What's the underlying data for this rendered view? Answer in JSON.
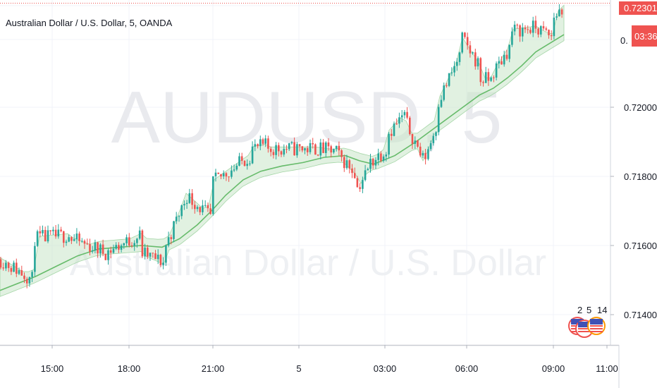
{
  "header": {
    "title": "Australian Dollar / U.S. Dollar, 5, OANDA"
  },
  "watermark": {
    "symbol": "AUDUSD, 5",
    "description": "Australian Dollar / U.S. Dollar"
  },
  "price_axis": {
    "current_price": "0.72301",
    "countdown": "03:36",
    "partial_label": "0."
  },
  "events": [
    {
      "count": "2"
    },
    {
      "count": "5"
    },
    {
      "count": "14"
    }
  ],
  "colors": {
    "up": "#26a69a",
    "down": "#ef5350",
    "ma": "#66bb6a",
    "band_fill": "#c8e6c9",
    "band_line": "#a5d6a7",
    "price_line": "#ef5350",
    "grid": "#f0f3fa"
  },
  "chart_data": {
    "type": "candlestick",
    "symbol": "Australian Dollar / U.S. Dollar, 5, OANDA",
    "y_tick_labels": [
      "0.72000",
      "0.71800",
      "0.71600",
      "0.71400"
    ],
    "y_ticks": [
      0.72,
      0.718,
      0.716,
      0.714
    ],
    "ylim": [
      0.7131,
      0.72305
    ],
    "x_tick_labels": [
      "15:00",
      "18:00",
      "21:00",
      "5",
      "03:00",
      "06:00",
      "09:00",
      "11:00"
    ],
    "last_price": 0.72301,
    "ma_path": [
      [
        0,
        0.7147
      ],
      [
        25,
        0.7149
      ],
      [
        50,
        0.7151
      ],
      [
        80,
        0.7154
      ],
      [
        110,
        0.7157
      ],
      [
        140,
        0.7159
      ],
      [
        170,
        0.71595
      ],
      [
        200,
        0.716
      ],
      [
        230,
        0.71595
      ],
      [
        255,
        0.7162
      ],
      [
        280,
        0.7166
      ],
      [
        300,
        0.717
      ],
      [
        320,
        0.71745
      ],
      [
        345,
        0.7179
      ],
      [
        370,
        0.71815
      ],
      [
        400,
        0.7183
      ],
      [
        430,
        0.7184
      ],
      [
        460,
        0.71855
      ],
      [
        490,
        0.7186
      ],
      [
        510,
        0.71845
      ],
      [
        530,
        0.71835
      ],
      [
        560,
        0.7186
      ],
      [
        590,
        0.719
      ],
      [
        620,
        0.71945
      ],
      [
        650,
        0.7199
      ],
      [
        680,
        0.72035
      ],
      [
        700,
        0.72055
      ],
      [
        720,
        0.72085
      ],
      [
        740,
        0.7212
      ],
      [
        760,
        0.7216
      ],
      [
        780,
        0.72185
      ],
      [
        800,
        0.7221
      ]
    ],
    "band_width": 0.00022,
    "segments": [
      [
        0,
        0.7149,
        0.7156
      ],
      [
        48,
        0.715,
        0.7162
      ],
      [
        100,
        0.7163,
        0.7162
      ],
      [
        150,
        0.7158,
        0.7158
      ],
      [
        200,
        0.7163,
        0.7158
      ],
      [
        233,
        0.7155,
        0.7159
      ],
      [
        262,
        0.7173,
        0.7175
      ],
      [
        300,
        0.7168,
        0.7178
      ],
      [
        355,
        0.7186,
        0.7188
      ],
      [
        380,
        0.7189,
        0.7188
      ],
      [
        410,
        0.7188,
        0.7188
      ],
      [
        450,
        0.7188,
        0.7188
      ],
      [
        480,
        0.7187,
        0.7186
      ],
      [
        505,
        0.7181,
        0.7176
      ],
      [
        525,
        0.7183,
        0.7184
      ],
      [
        548,
        0.7188,
        0.7192
      ],
      [
        575,
        0.7198,
        0.7196
      ],
      [
        600,
        0.7185,
        0.7184
      ],
      [
        620,
        0.7195,
        0.7201
      ],
      [
        655,
        0.7216,
        0.722
      ],
      [
        680,
        0.7212,
        0.7208
      ],
      [
        700,
        0.7208,
        0.721
      ],
      [
        725,
        0.7218,
        0.7222
      ],
      [
        760,
        0.7223,
        0.7223
      ],
      [
        785,
        0.722,
        0.7226
      ],
      [
        800,
        0.7229,
        0.72301
      ]
    ]
  }
}
